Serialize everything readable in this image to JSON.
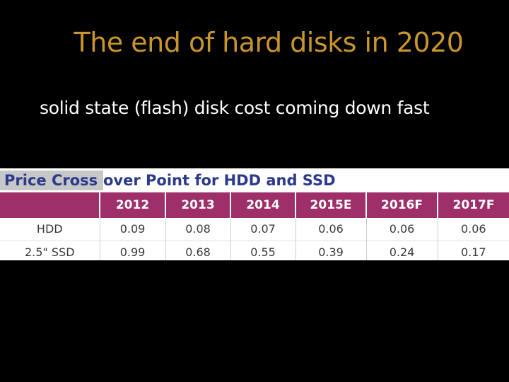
{
  "slide": {
    "title": "The end of hard disks in 2020",
    "subtitle": "solid state (flash) disk cost coming down fast"
  },
  "table": {
    "caption_left": "Price Cross",
    "caption_right": "over Point for HDD and SSD",
    "columns": [
      "",
      "2012",
      "2013",
      "2014",
      "2015E",
      "2016F",
      "2017F"
    ],
    "rows": [
      {
        "label": "HDD",
        "values": [
          "0.09",
          "0.08",
          "0.07",
          "0.06",
          "0.06",
          "0.06"
        ]
      },
      {
        "label": "2.5\" SSD",
        "values": [
          "0.99",
          "0.68",
          "0.55",
          "0.39",
          "0.24",
          "0.17"
        ]
      }
    ]
  },
  "colors": {
    "title": "#c8962a",
    "header_band": "#9e2f6a",
    "caption_text": "#2b3a8c"
  }
}
